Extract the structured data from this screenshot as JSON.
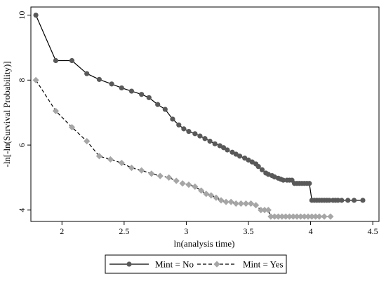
{
  "chart_data": {
    "type": "line",
    "title": "",
    "xlabel": "ln(analysis time)",
    "ylabel": "-ln[-ln(Survival Probability)]",
    "xlim": [
      1.75,
      4.55
    ],
    "ylim": [
      3.65,
      10.25
    ],
    "x_ticks": [
      {
        "value": 2,
        "label": "2"
      },
      {
        "value": 2.5,
        "label": "2.5"
      },
      {
        "value": 3,
        "label": "3"
      },
      {
        "value": 3.5,
        "label": "3.5"
      },
      {
        "value": 4,
        "label": "4"
      },
      {
        "value": 4.5,
        "label": "4.5"
      }
    ],
    "y_ticks": [
      {
        "value": 4,
        "label": "4"
      },
      {
        "value": 6,
        "label": "6"
      },
      {
        "value": 8,
        "label": "8"
      },
      {
        "value": 10,
        "label": "10"
      }
    ],
    "grid": false,
    "legend_position": "bottom",
    "series": [
      {
        "name": "Mint = No",
        "marker": "circle",
        "line_style": "solid",
        "color": "#595959",
        "x": [
          1.79,
          1.95,
          2.08,
          2.2,
          2.3,
          2.4,
          2.48,
          2.56,
          2.64,
          2.7,
          2.77,
          2.83,
          2.89,
          2.94,
          2.98,
          3.02,
          3.07,
          3.11,
          3.15,
          3.19,
          3.23,
          3.27,
          3.3,
          3.33,
          3.37,
          3.4,
          3.43,
          3.47,
          3.5,
          3.53,
          3.56,
          3.58,
          3.61,
          3.64,
          3.66,
          3.69,
          3.71,
          3.74,
          3.76,
          3.78,
          3.81,
          3.83,
          3.85,
          3.87,
          3.89,
          3.91,
          3.93,
          3.95,
          3.97,
          3.99,
          4.01,
          4.03,
          4.05,
          4.07,
          4.09,
          4.11,
          4.13,
          4.15,
          4.18,
          4.2,
          4.22,
          4.25,
          4.3,
          4.35,
          4.42
        ],
        "y": [
          10.0,
          8.6,
          8.6,
          8.2,
          8.02,
          7.88,
          7.76,
          7.66,
          7.56,
          7.46,
          7.25,
          7.1,
          6.8,
          6.62,
          6.5,
          6.42,
          6.35,
          6.28,
          6.2,
          6.12,
          6.04,
          5.98,
          5.92,
          5.85,
          5.78,
          5.72,
          5.66,
          5.6,
          5.54,
          5.48,
          5.42,
          5.34,
          5.24,
          5.14,
          5.1,
          5.06,
          5.02,
          4.98,
          4.95,
          4.92,
          4.92,
          4.92,
          4.92,
          4.82,
          4.82,
          4.82,
          4.82,
          4.82,
          4.82,
          4.82,
          4.3,
          4.3,
          4.3,
          4.3,
          4.3,
          4.3,
          4.3,
          4.3,
          4.3,
          4.3,
          4.3,
          4.3,
          4.3,
          4.3,
          4.3
        ]
      },
      {
        "name": "Mint = Yes",
        "marker": "diamond",
        "line_style": "dashed",
        "color": "#a6a6a6",
        "x": [
          1.79,
          1.95,
          2.08,
          2.2,
          2.3,
          2.39,
          2.48,
          2.56,
          2.64,
          2.72,
          2.79,
          2.86,
          2.92,
          2.97,
          3.02,
          3.07,
          3.12,
          3.16,
          3.2,
          3.24,
          3.28,
          3.32,
          3.36,
          3.4,
          3.44,
          3.48,
          3.52,
          3.56,
          3.6,
          3.63,
          3.66,
          3.68,
          3.71,
          3.74,
          3.77,
          3.8,
          3.83,
          3.86,
          3.89,
          3.92,
          3.95,
          3.98,
          4.01,
          4.04,
          4.07,
          4.11,
          4.16
        ],
        "y": [
          8.0,
          7.05,
          6.55,
          6.12,
          5.66,
          5.56,
          5.45,
          5.3,
          5.22,
          5.12,
          5.05,
          5.0,
          4.9,
          4.82,
          4.78,
          4.72,
          4.6,
          4.5,
          4.45,
          4.38,
          4.3,
          4.25,
          4.25,
          4.2,
          4.2,
          4.2,
          4.2,
          4.15,
          4.0,
          4.0,
          4.0,
          3.8,
          3.8,
          3.8,
          3.8,
          3.8,
          3.8,
          3.8,
          3.8,
          3.8,
          3.8,
          3.8,
          3.8,
          3.8,
          3.8,
          3.8,
          3.8
        ]
      }
    ]
  }
}
